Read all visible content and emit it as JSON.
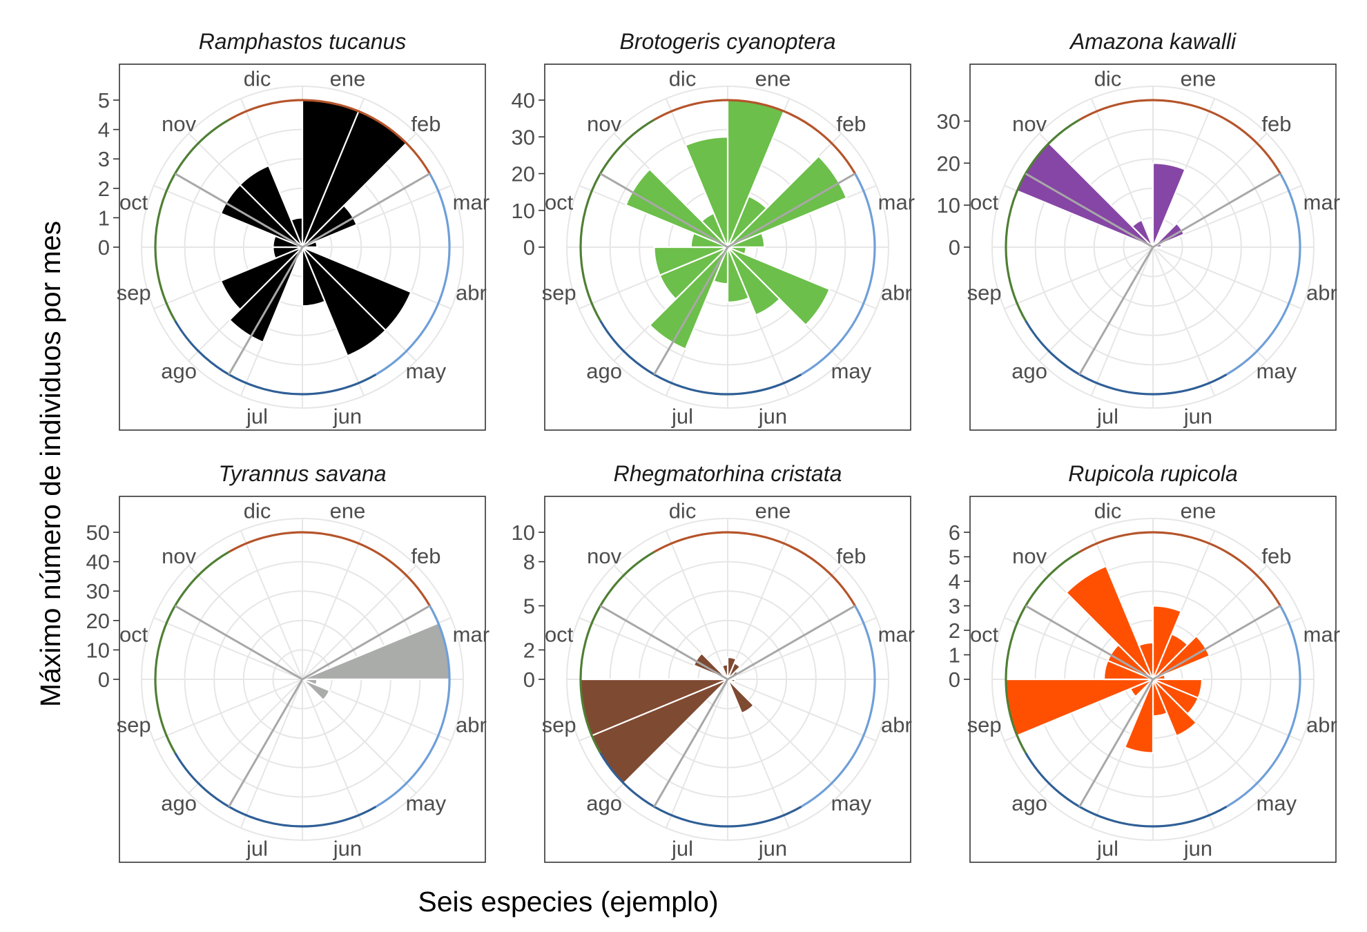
{
  "figure": {
    "xlabel": "Seis especies (ejemplo)",
    "ylabel": "Máximo número de individuos por mes"
  },
  "colors": {
    "season_dec_feb": "#b5542a",
    "season_mar_may": "#6f9fd8",
    "season_jun_aug": "#2f5f96",
    "season_sep_nov": "#4f7f34",
    "divider": "#a8a8a8",
    "grid": "#e6e6e6",
    "axis_text": "#4d4d4d",
    "panel_border": "#333333"
  },
  "month_labels": [
    "ene",
    "feb",
    "mar",
    "abr",
    "may",
    "jun",
    "jul",
    "ago",
    "sep",
    "oct",
    "nov",
    "dic"
  ],
  "chart_data": [
    {
      "type": "bar",
      "coord": "polar",
      "title": "Ramphastos tucanus",
      "color": "#000000",
      "y_ticks": [
        0,
        1,
        2,
        3,
        4,
        5
      ],
      "y_tick_labels": [
        "0",
        "1",
        "2",
        "3",
        "4",
        "5"
      ],
      "ylim": [
        0,
        5
      ],
      "values": [
        5,
        5,
        2,
        0.5,
        0,
        4,
        4,
        2,
        0.2,
        3.5,
        3,
        1,
        1,
        3,
        3,
        1
      ]
    },
    {
      "type": "bar",
      "coord": "polar",
      "title": "Brotogeris cyanoptera",
      "color": "#6cbf4a",
      "y_ticks": [
        0,
        10,
        20,
        30,
        40
      ],
      "y_tick_labels": [
        "0",
        "10",
        "20",
        "30",
        "40"
      ],
      "ylim": [
        0,
        40
      ],
      "values": [
        40,
        15,
        35,
        10,
        5,
        30,
        20,
        15,
        10,
        30,
        20,
        20,
        10,
        30,
        10,
        30
      ]
    },
    {
      "type": "bar",
      "coord": "polar",
      "title": "Amazona kawalli",
      "color": "#8646a5",
      "y_ticks": [
        0,
        10,
        20,
        30
      ],
      "y_tick_labels": [
        "0",
        "10",
        "20",
        "30"
      ],
      "ylim": [
        0,
        35
      ],
      "values": [
        20,
        1,
        8,
        2,
        1,
        0,
        0,
        0,
        0,
        0,
        0,
        0,
        0,
        35,
        7,
        0
      ]
    },
    {
      "type": "bar",
      "coord": "polar",
      "title": "Tyrannus savana",
      "color": "#aaacaa",
      "y_ticks": [
        0,
        10,
        20,
        30,
        40,
        50
      ],
      "y_tick_labels": [
        "0",
        "10",
        "20",
        "30",
        "40",
        "50"
      ],
      "ylim": [
        0,
        50
      ],
      "values": [
        0,
        0,
        0,
        50,
        5,
        10,
        0,
        0,
        0,
        0,
        0,
        0,
        0,
        0,
        0,
        0
      ]
    },
    {
      "type": "bar",
      "coord": "polar",
      "title": "Rhegmatorhina cristata",
      "color": "#7f4a32",
      "y_ticks": [
        0,
        2,
        5,
        8,
        10
      ],
      "y_tick_labels": [
        "0",
        "2",
        "5",
        "8",
        "10"
      ],
      "ylim": [
        0,
        10
      ],
      "values": [
        1.5,
        1.2,
        0.8,
        0.3,
        0.5,
        0,
        2.5,
        0,
        0,
        0,
        10,
        10,
        0,
        2.5,
        0,
        1
      ]
    },
    {
      "type": "bar",
      "coord": "polar",
      "title": "Rupicola rupicola",
      "color": "#fe5000",
      "y_ticks": [
        0,
        1,
        2,
        3,
        4,
        5,
        6
      ],
      "y_tick_labels": [
        "0",
        "1",
        "2",
        "3",
        "4",
        "5",
        "6"
      ],
      "ylim": [
        0,
        6
      ],
      "values": [
        3,
        2,
        2.5,
        0.5,
        2,
        2,
        2.5,
        1.5,
        3,
        0.3,
        1,
        6,
        2,
        2,
        5,
        1.5
      ]
    }
  ]
}
